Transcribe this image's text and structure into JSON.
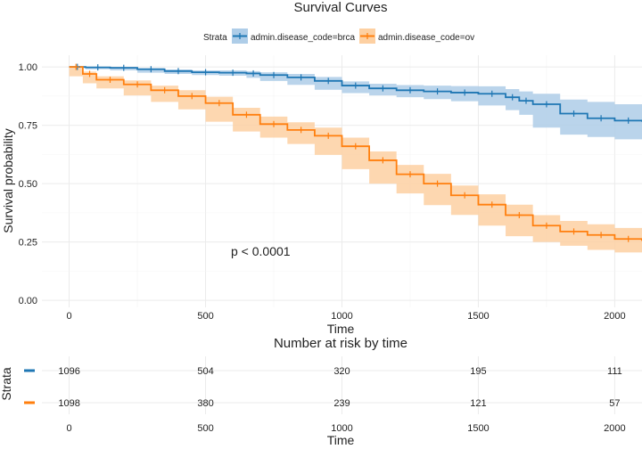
{
  "chart_data": [
    {
      "type": "line",
      "title": "Survival Curves",
      "xlabel": "Time",
      "ylabel": "Survival probability",
      "xlim": [
        -100,
        2100
      ],
      "ylim": [
        -0.03,
        1.05
      ],
      "xticks": [
        "0",
        "500",
        "1000",
        "1500",
        "2000"
      ],
      "yticks": [
        "0.00",
        "0.25",
        "0.50",
        "0.75",
        "1.00"
      ],
      "grid": true,
      "legend": {
        "title": "Strata",
        "position": "top",
        "entries": [
          "admin.disease_code=brca",
          "admin.disease_code=ov"
        ]
      },
      "annotation": "p < 0.0001",
      "series": [
        {
          "name": "admin.disease_code=brca",
          "color": "#1f77b4",
          "band_color": "#aecde8",
          "x": [
            0,
            60,
            150,
            250,
            350,
            450,
            550,
            650,
            700,
            800,
            900,
            1000,
            1100,
            1200,
            1300,
            1400,
            1500,
            1600,
            1650,
            1700,
            1800,
            1900,
            2000,
            2100
          ],
          "y": [
            1.0,
            0.998,
            0.996,
            0.99,
            0.982,
            0.977,
            0.975,
            0.972,
            0.965,
            0.955,
            0.94,
            0.92,
            0.908,
            0.9,
            0.895,
            0.89,
            0.885,
            0.87,
            0.855,
            0.84,
            0.8,
            0.78,
            0.77,
            0.765
          ],
          "lower": [
            1.0,
            0.995,
            0.99,
            0.985,
            0.975,
            0.97,
            0.965,
            0.962,
            0.953,
            0.94,
            0.923,
            0.902,
            0.888,
            0.878,
            0.87,
            0.862,
            0.853,
            0.835,
            0.815,
            0.795,
            0.74,
            0.71,
            0.7,
            0.69
          ],
          "upper": [
            1.0,
            1.0,
            1.0,
            0.995,
            0.989,
            0.985,
            0.985,
            0.982,
            0.977,
            0.97,
            0.957,
            0.938,
            0.928,
            0.922,
            0.92,
            0.918,
            0.917,
            0.905,
            0.895,
            0.885,
            0.86,
            0.85,
            0.84,
            0.84
          ]
        },
        {
          "name": "admin.disease_code=ov",
          "color": "#ff7f0e",
          "band_color": "#fdd0a2",
          "x": [
            0,
            50,
            100,
            200,
            300,
            400,
            500,
            600,
            700,
            800,
            900,
            1000,
            1100,
            1200,
            1300,
            1400,
            1500,
            1600,
            1700,
            1800,
            1900,
            2000,
            2100
          ],
          "y": [
            1.0,
            0.97,
            0.945,
            0.925,
            0.9,
            0.875,
            0.845,
            0.795,
            0.755,
            0.73,
            0.705,
            0.66,
            0.6,
            0.54,
            0.5,
            0.45,
            0.41,
            0.365,
            0.32,
            0.295,
            0.28,
            0.263,
            0.255
          ],
          "lower": [
            1.0,
            0.96,
            0.93,
            0.908,
            0.878,
            0.85,
            0.818,
            0.765,
            0.723,
            0.697,
            0.67,
            0.623,
            0.562,
            0.5,
            0.458,
            0.408,
            0.366,
            0.32,
            0.275,
            0.25,
            0.234,
            0.216,
            0.205
          ],
          "upper": [
            1.0,
            0.98,
            0.96,
            0.942,
            0.92,
            0.9,
            0.872,
            0.825,
            0.787,
            0.763,
            0.74,
            0.697,
            0.638,
            0.58,
            0.542,
            0.492,
            0.454,
            0.41,
            0.365,
            0.34,
            0.326,
            0.31,
            0.305
          ]
        }
      ]
    },
    {
      "type": "table",
      "title": "Number at risk by time",
      "xlabel": "Time",
      "ylabel": "Strata",
      "xlim": [
        -100,
        2100
      ],
      "xticks": [
        "0",
        "500",
        "1000",
        "1500",
        "2000"
      ],
      "columns": [
        0,
        500,
        1000,
        1500,
        2000
      ],
      "rows": [
        {
          "name": "admin.disease_code=brca",
          "color": "#1f77b4",
          "values": [
            "1096",
            "504",
            "320",
            "195",
            "111"
          ]
        },
        {
          "name": "admin.disease_code=ov",
          "color": "#ff7f0e",
          "values": [
            "1098",
            "380",
            "239",
            "121",
            "57"
          ]
        }
      ]
    }
  ]
}
